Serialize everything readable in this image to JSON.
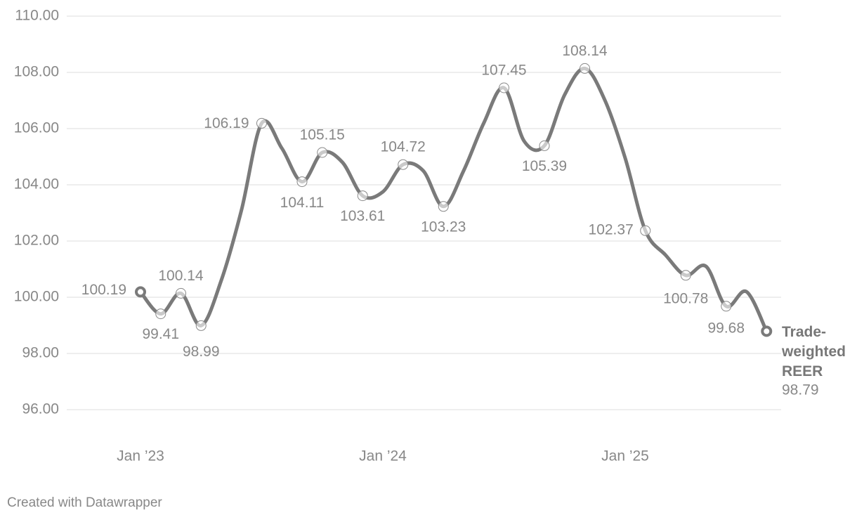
{
  "chart_data": {
    "type": "line",
    "x": [
      "2023-01",
      "2023-02",
      "2023-03",
      "2023-04",
      "2023-05",
      "2023-06",
      "2023-07",
      "2023-08",
      "2023-09",
      "2023-10",
      "2023-11",
      "2023-12",
      "2024-01",
      "2024-02",
      "2024-03",
      "2024-04",
      "2024-05",
      "2024-06",
      "2024-07",
      "2024-08",
      "2024-09",
      "2024-10",
      "2024-11",
      "2024-12",
      "2025-01",
      "2025-02",
      "2025-03",
      "2025-04",
      "2025-05",
      "2025-06",
      "2025-07",
      "2025-08"
    ],
    "series": [
      {
        "name": "Trade-weighted REER",
        "color": "#7a7a7a",
        "values": [
          100.19,
          99.41,
          100.14,
          98.99,
          100.6,
          103.1,
          106.19,
          105.3,
          104.11,
          105.15,
          104.8,
          103.61,
          103.75,
          104.72,
          104.5,
          103.23,
          104.5,
          106.2,
          107.45,
          105.55,
          105.39,
          107.2,
          108.14,
          107.0,
          104.95,
          102.37,
          101.5,
          100.78,
          101.1,
          99.68,
          100.2,
          98.79
        ],
        "value_labels": [
          "100.19",
          "99.41",
          "100.14",
          "98.99",
          null,
          null,
          "106.19",
          null,
          "104.11",
          "105.15",
          null,
          "103.61",
          null,
          "104.72",
          null,
          "103.23",
          null,
          null,
          "107.45",
          null,
          "105.39",
          null,
          "108.14",
          null,
          null,
          "102.37",
          null,
          "100.78",
          null,
          "99.68",
          null,
          "98.79"
        ]
      }
    ],
    "ylim": [
      96,
      110
    ],
    "yticks": [
      {
        "value": 96,
        "label": "96.00"
      },
      {
        "value": 98,
        "label": "98.00"
      },
      {
        "value": 100,
        "label": "100.00"
      },
      {
        "value": 102,
        "label": "102.00"
      },
      {
        "value": 104,
        "label": "104.00"
      },
      {
        "value": 106,
        "label": "106.00"
      },
      {
        "value": 108,
        "label": "108.00"
      },
      {
        "value": 110,
        "label": "110.00"
      }
    ],
    "xticks": [
      {
        "value": "2023-01",
        "label": "Jan ’23"
      },
      {
        "value": "2024-01",
        "label": "Jan ’24"
      },
      {
        "value": "2025-01",
        "label": "Jan ’25"
      }
    ],
    "grid": true,
    "credit": "Created with Datawrapper"
  }
}
